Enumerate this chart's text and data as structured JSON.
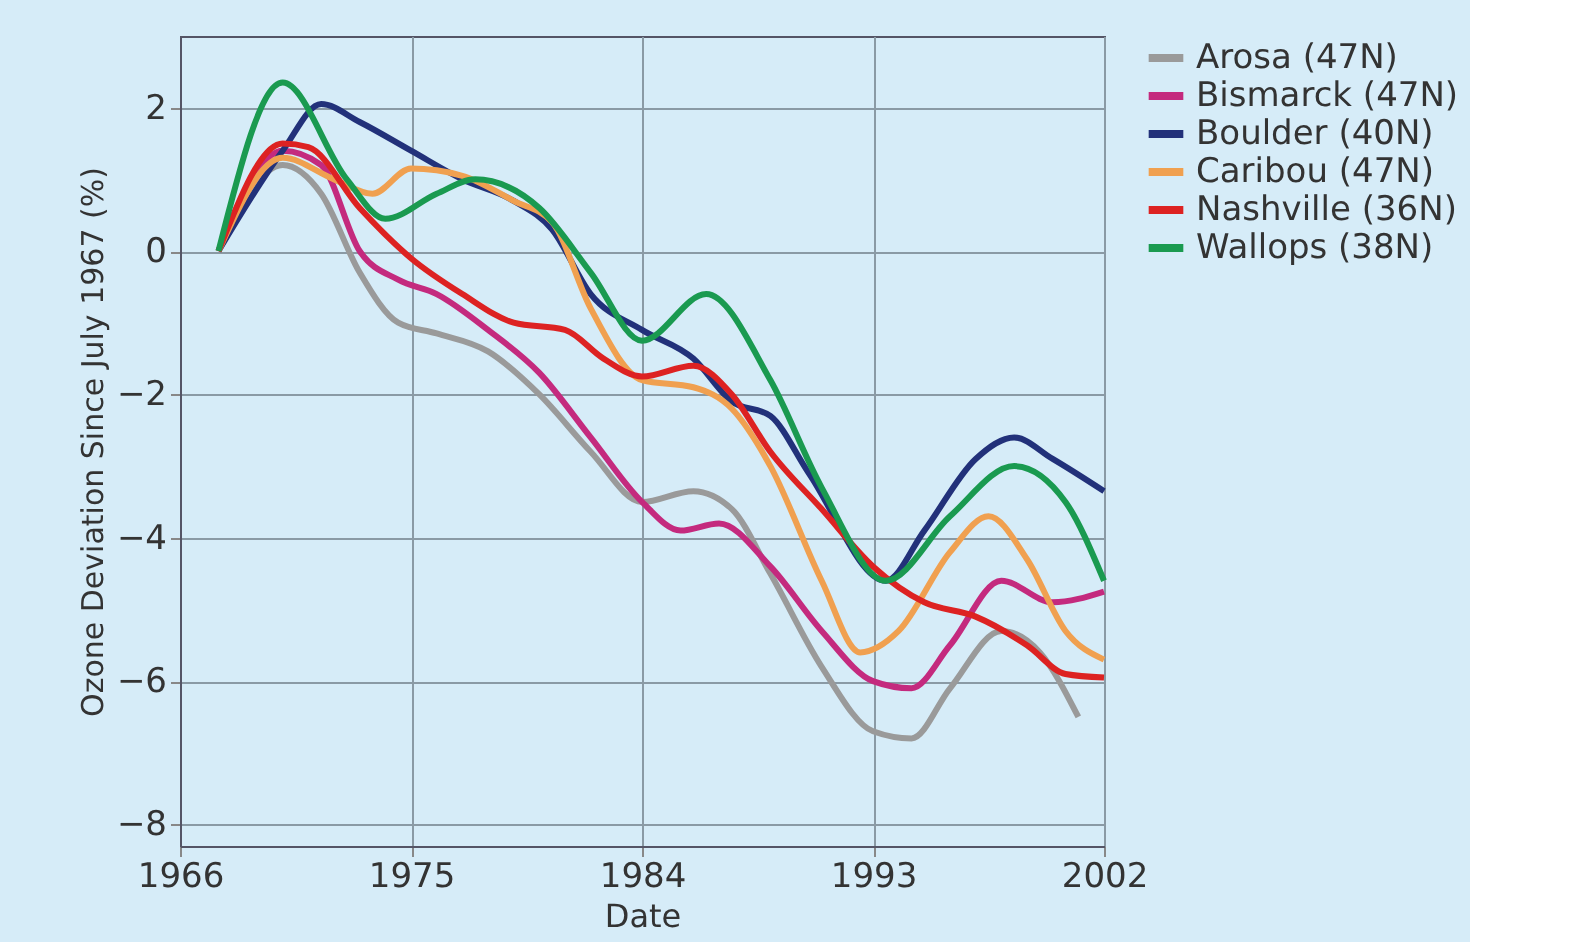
{
  "chart_data": {
    "type": "line",
    "xlabel": "Date",
    "ylabel": "Ozone Deviation Since July 1967 (%)",
    "xlim": [
      1966,
      2002
    ],
    "xticks": [
      1966,
      1975,
      1984,
      1993,
      2002
    ],
    "ylim": [
      -8.3,
      3
    ],
    "yticks": [
      -8,
      -6,
      -4,
      -2,
      0,
      2
    ],
    "grid": true,
    "legend": "right",
    "marker": "none",
    "line_style": "solid",
    "series": [
      {
        "name": "Arosa (47N)",
        "color": "#9a9a9a",
        "x": [
          1967.5,
          1970,
          1971.5,
          1973,
          1974.5,
          1976,
          1978,
          1980,
          1982,
          1984,
          1986,
          1987.5,
          1989,
          1991,
          1993,
          1994.5,
          1996,
          1998,
          1999.5,
          2001
        ],
        "values": [
          0,
          1.2,
          0.8,
          -0.3,
          -1.0,
          -1.15,
          -1.4,
          -2.0,
          -2.8,
          -3.5,
          -3.35,
          -3.6,
          -4.5,
          -5.8,
          -6.7,
          -6.8,
          -6.1,
          -5.3,
          -5.6,
          -6.5
        ]
      },
      {
        "name": "Bismarck (47N)",
        "color": "#c42a7e",
        "x": [
          1967.5,
          1970,
          1971.5,
          1973,
          1974.5,
          1976,
          1978,
          1980,
          1982,
          1984,
          1985.5,
          1987,
          1989,
          1991,
          1993,
          1994.5,
          1996,
          1998,
          2000,
          2002
        ],
        "values": [
          0,
          1.4,
          1.2,
          0.0,
          -0.4,
          -0.6,
          -1.1,
          -1.7,
          -2.6,
          -3.5,
          -3.9,
          -3.8,
          -4.4,
          -5.3,
          -6.0,
          -6.1,
          -5.5,
          -4.6,
          -4.9,
          -4.75
        ]
      },
      {
        "name": "Boulder (40N)",
        "color": "#22317a",
        "x": [
          1967.5,
          1970,
          1971.5,
          1973,
          1975,
          1977,
          1979,
          1980.5,
          1982,
          1984,
          1986,
          1987.5,
          1989,
          1990.5,
          1993.5,
          1995,
          1997,
          1998.5,
          2000,
          2002
        ],
        "values": [
          0,
          1.4,
          2.05,
          1.8,
          1.4,
          1.0,
          0.7,
          0.3,
          -0.6,
          -1.1,
          -1.5,
          -2.1,
          -2.3,
          -3.1,
          -4.6,
          -3.9,
          -2.9,
          -2.6,
          -2.9,
          -3.35
        ]
      },
      {
        "name": "Caribou (47N)",
        "color": "#f0a050",
        "x": [
          1967.5,
          1970,
          1972,
          1973.5,
          1975,
          1977,
          1979,
          1980.5,
          1982,
          1984,
          1986,
          1987.5,
          1989,
          1991,
          1992.5,
          1994,
          1996,
          1997.5,
          1999,
          2000.5,
          2002
        ],
        "values": [
          0,
          1.3,
          1.0,
          0.8,
          1.15,
          1.05,
          0.7,
          0.4,
          -0.8,
          -1.8,
          -1.9,
          -2.2,
          -3.0,
          -4.6,
          -5.6,
          -5.3,
          -4.2,
          -3.7,
          -4.3,
          -5.3,
          -5.7
        ]
      },
      {
        "name": "Nashville (36N)",
        "color": "#dd2222",
        "x": [
          1967.5,
          1970,
          1971,
          1973,
          1975,
          1977,
          1979,
          1981,
          1982.5,
          1984,
          1986,
          1987.5,
          1989,
          1991,
          1993,
          1995,
          1997,
          1999,
          2000.5,
          2002
        ],
        "values": [
          0,
          1.5,
          1.45,
          0.6,
          -0.1,
          -0.6,
          -1.0,
          -1.1,
          -1.5,
          -1.75,
          -1.6,
          -2.0,
          -2.8,
          -3.6,
          -4.4,
          -4.9,
          -5.1,
          -5.5,
          -5.9,
          -5.95
        ]
      },
      {
        "name": "Wallops (38N)",
        "color": "#1a9a50",
        "x": [
          1967.5,
          1970,
          1972.5,
          1974,
          1976,
          1977.5,
          1980,
          1982,
          1984,
          1986.5,
          1989,
          1991,
          1993.5,
          1996,
          1998.5,
          2000.5,
          2002
        ],
        "values": [
          0,
          2.35,
          1.0,
          0.45,
          0.8,
          1.0,
          0.6,
          -0.3,
          -1.25,
          -0.6,
          -1.8,
          -3.3,
          -4.6,
          -3.7,
          -3.0,
          -3.5,
          -4.6
        ]
      }
    ]
  }
}
